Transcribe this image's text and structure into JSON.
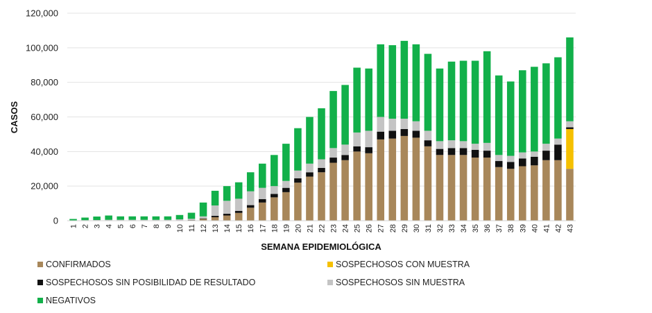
{
  "chart_data": {
    "type": "bar",
    "stacked": true,
    "ylabel": "CASOS",
    "xlabel": "SEMANA EPIDEMIOLÓGICA",
    "ylim": [
      0,
      120000
    ],
    "yticks": [
      0,
      20000,
      40000,
      60000,
      80000,
      100000,
      120000
    ],
    "ytick_labels": [
      "0",
      "20,000",
      "40,000",
      "60,000",
      "80,000",
      "100,000",
      "120,000"
    ],
    "grid": true,
    "legend_position": "bottom",
    "categories": [
      "1",
      "2",
      "3",
      "4",
      "5",
      "6",
      "7",
      "8",
      "9",
      "10",
      "11",
      "12",
      "13",
      "14",
      "15",
      "16",
      "17",
      "18",
      "19",
      "20",
      "21",
      "22",
      "23",
      "24",
      "25",
      "26",
      "27",
      "28",
      "29",
      "30",
      "31",
      "32",
      "33",
      "34",
      "35",
      "36",
      "37",
      "38",
      "39",
      "40",
      "41",
      "42",
      "43"
    ],
    "series": [
      {
        "name": "CONFIRMADOS",
        "color": "#A8875A",
        "values": [
          0,
          0,
          0,
          0,
          0,
          0,
          0,
          0,
          0,
          100,
          300,
          1000,
          2000,
          3000,
          4500,
          7500,
          10500,
          13500,
          16500,
          22000,
          25500,
          28000,
          33500,
          35000,
          40000,
          39000,
          47000,
          47500,
          49000,
          48000,
          43000,
          38000,
          38000,
          38000,
          36500,
          36500,
          31000,
          30000,
          31500,
          32000,
          35000,
          35000,
          30000
        ]
      },
      {
        "name": "SOSPECHOSOS CON MUESTRA",
        "color": "#F5C000",
        "values": [
          0,
          0,
          0,
          0,
          0,
          0,
          0,
          0,
          0,
          0,
          0,
          0,
          0,
          0,
          0,
          0,
          0,
          0,
          0,
          0,
          0,
          0,
          0,
          0,
          0,
          0,
          0,
          0,
          0,
          0,
          0,
          0,
          0,
          0,
          0,
          0,
          0,
          0,
          0,
          0,
          0,
          0,
          23000
        ]
      },
      {
        "name": "SOSPECHOSOS SIN POSIBILIDAD DE RESULTADO",
        "color": "#111111",
        "values": [
          0,
          0,
          0,
          0,
          0,
          0,
          0,
          0,
          0,
          0,
          100,
          300,
          800,
          1000,
          1200,
          1500,
          2000,
          2000,
          2500,
          2500,
          2500,
          2500,
          3000,
          3000,
          3000,
          3500,
          4500,
          4500,
          4000,
          4000,
          3500,
          3500,
          4000,
          4000,
          4500,
          4000,
          3500,
          4000,
          4500,
          5000,
          5500,
          9000,
          1000
        ]
      },
      {
        "name": "SOSPECHOSOS SIN MUESTRA",
        "color": "#C4C4C4",
        "values": [
          0,
          300,
          400,
          500,
          500,
          500,
          500,
          500,
          500,
          700,
          700,
          1200,
          6000,
          7500,
          7000,
          8000,
          6500,
          4500,
          4000,
          4500,
          5000,
          5000,
          5500,
          6000,
          8000,
          9500,
          8500,
          7000,
          6000,
          5500,
          5500,
          4500,
          4500,
          4000,
          3500,
          4500,
          3500,
          3500,
          3500,
          3000,
          4000,
          3500,
          3500
        ]
      },
      {
        "name": "NEGATIVOS",
        "color": "#12B04A",
        "values": [
          1000,
          1500,
          2000,
          2500,
          2000,
          2000,
          2000,
          2000,
          2000,
          2500,
          3500,
          8000,
          8500,
          8500,
          9500,
          11000,
          14000,
          18000,
          21500,
          24500,
          27000,
          29500,
          33000,
          34500,
          37500,
          36000,
          42000,
          42500,
          45000,
          44500,
          44500,
          42000,
          45500,
          46500,
          48000,
          53000,
          46000,
          43000,
          47500,
          49000,
          46500,
          47000,
          48500
        ]
      }
    ]
  }
}
